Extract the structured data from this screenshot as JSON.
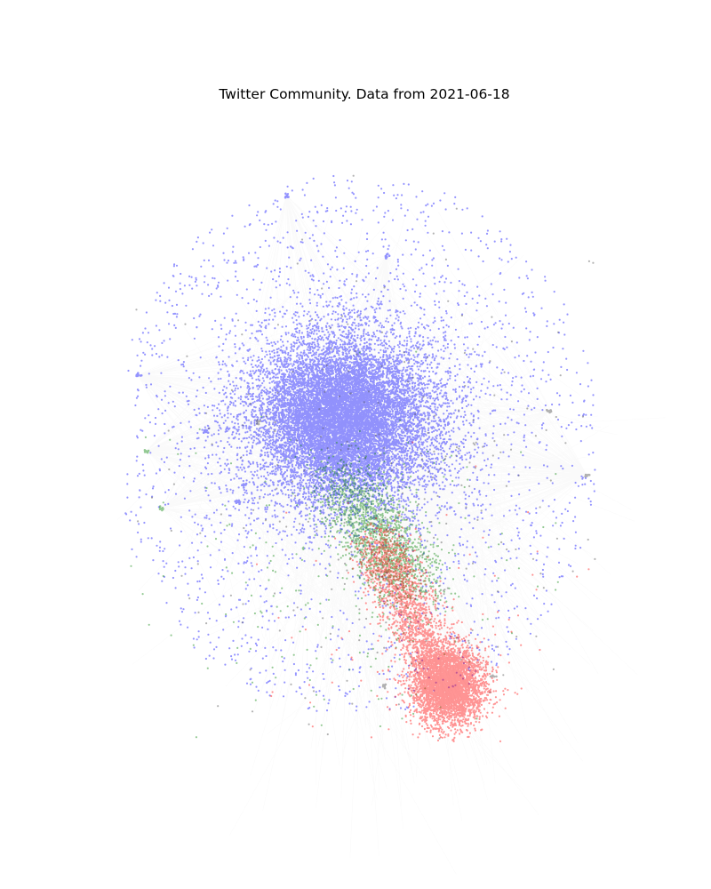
{
  "figure": {
    "title": "Twitter Community. Data from 2021-06-18"
  },
  "graph": {
    "colors": {
      "community_a": "#0000ff",
      "community_b": "#ff0000",
      "community_c": "#008000",
      "other": "#555555",
      "edges": "#000000",
      "background": "#ffffff"
    }
  }
}
